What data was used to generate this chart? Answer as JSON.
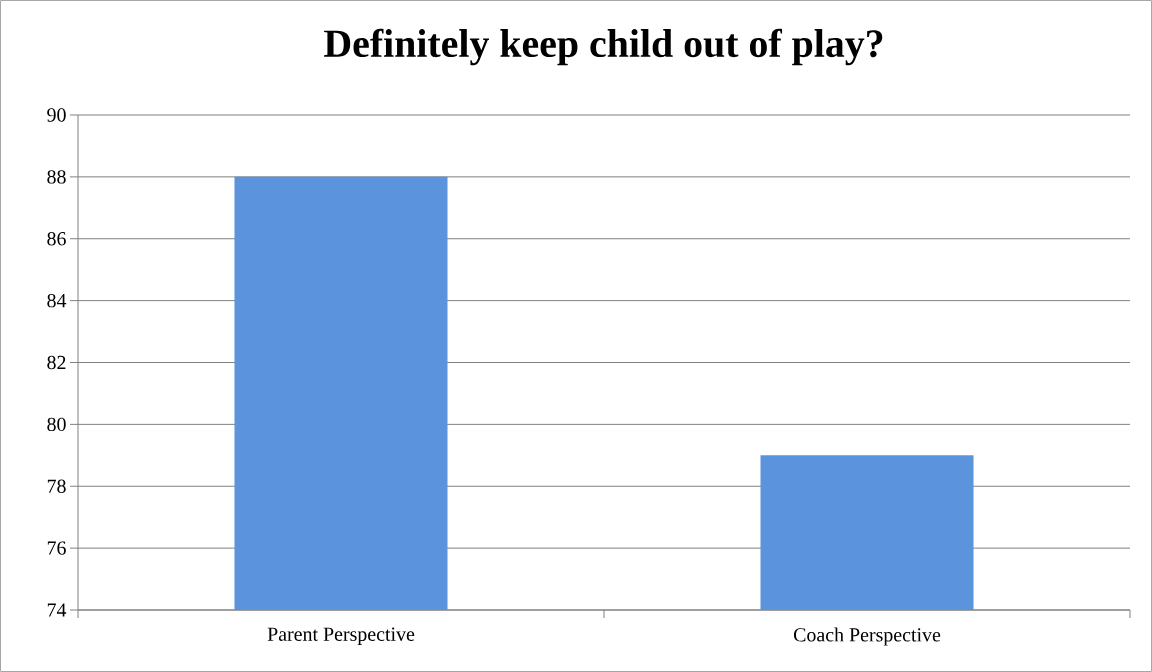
{
  "chart_data": {
    "type": "bar",
    "title": "Definitely keep child out of play?",
    "categories": [
      "Parent Perspective",
      "Coach Perspective"
    ],
    "values": [
      88,
      79
    ],
    "color": "#5b93dc",
    "ylim": [
      74,
      90
    ],
    "yticks": [
      74,
      76,
      78,
      80,
      82,
      84,
      86,
      88,
      90
    ],
    "grid": "y"
  }
}
